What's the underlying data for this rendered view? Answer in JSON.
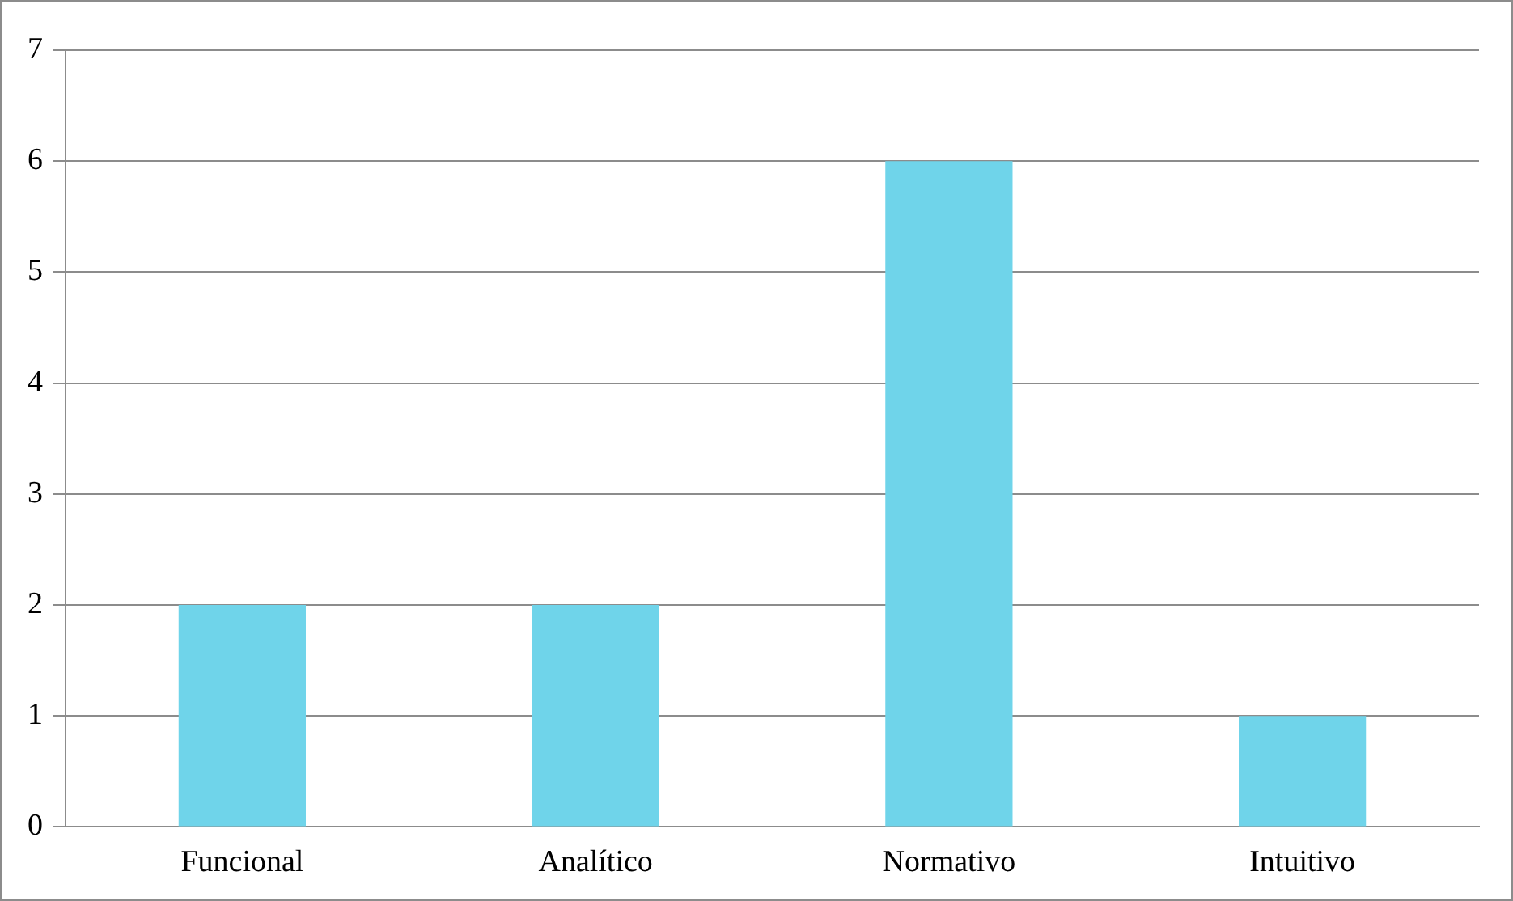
{
  "chart_data": {
    "type": "bar",
    "categories": [
      "Funcional",
      "Analítico",
      "Normativo",
      "Intuitivo"
    ],
    "values": [
      2,
      2,
      6,
      1
    ],
    "color": "#6fd4ea",
    "ylim": [
      0,
      7
    ],
    "yticks": [
      0,
      1,
      2,
      3,
      4,
      5,
      6,
      7
    ],
    "grid": "y",
    "legend": false
  }
}
